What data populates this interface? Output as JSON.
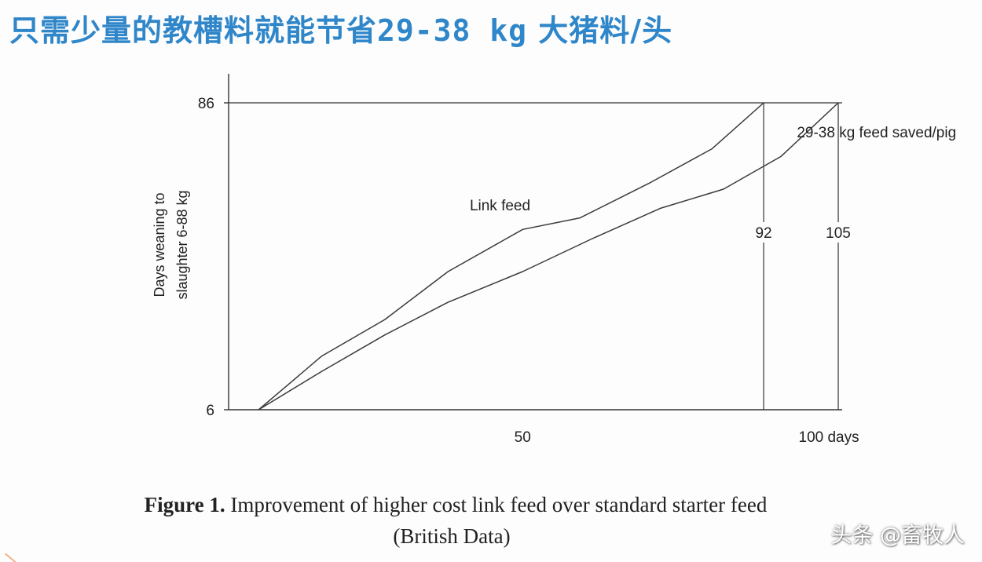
{
  "banner": {
    "text_prefix": "只需少量的教槽料就能节省",
    "text_mono": "29-38 kg",
    "text_suffix": " 大猪料/头"
  },
  "chart_data": {
    "type": "line",
    "title": "",
    "xlabel": "",
    "ylabel_line1": "Days weaning to",
    "ylabel_line2": "slaughter 6-88 kg",
    "x_ticks": [
      {
        "value": 50,
        "label": "50"
      },
      {
        "value": 100,
        "label": "100 days"
      }
    ],
    "y_ticks": [
      {
        "value": 6,
        "label": "6"
      },
      {
        "value": 86,
        "label": "86"
      }
    ],
    "xlim": [
      -1,
      110
    ],
    "ylim": [
      6,
      86
    ],
    "series": [
      {
        "name": "Link feed",
        "color": "#3a3a3a",
        "x": [
          4,
          15,
          26,
          37,
          50,
          60,
          72,
          83,
          92
        ],
        "y": [
          6,
          20,
          29.5,
          42,
          53,
          56,
          65,
          74,
          86
        ]
      },
      {
        "name": "",
        "color": "#3a3a3a",
        "x": [
          4,
          15,
          26,
          37,
          50,
          62,
          74,
          85,
          95,
          105
        ],
        "y": [
          6,
          16,
          25.5,
          34,
          42,
          50.5,
          58.5,
          63.5,
          72,
          86
        ]
      }
    ],
    "end_markers": [
      {
        "x": 92,
        "label": "92"
      },
      {
        "x": 105,
        "label": "105"
      }
    ],
    "annotations": [
      {
        "text": "Link feed",
        "x": 49,
        "y": 59
      },
      {
        "text": "29-38 kg feed saved/pig",
        "x": 106,
        "y": 78
      }
    ]
  },
  "caption": {
    "figure_label": "Figure 1.",
    "text": " Improvement of higher cost link feed over standard starter feed",
    "line2": "(British Data)"
  },
  "watermark": {
    "text": "头条 @畜牧人"
  }
}
